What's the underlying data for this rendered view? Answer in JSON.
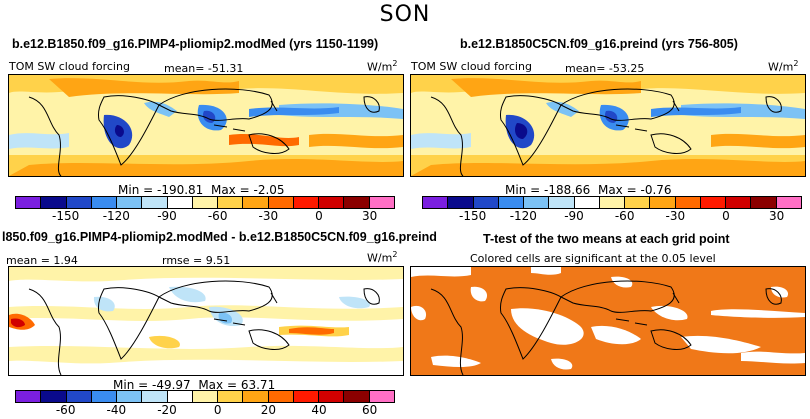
{
  "title": "SON",
  "colors": {
    "scale": [
      "#7b1fe0",
      "#0a0a8c",
      "#2148c8",
      "#3a8cf0",
      "#7cc2f5",
      "#bfe4f8",
      "#ffffff",
      "#fff3a8",
      "#ffd24a",
      "#ffa514",
      "#ff6a00",
      "#ff1a00",
      "#d10000",
      "#8b0000",
      "#ff6fc5"
    ],
    "significant": "#f07818"
  },
  "panels": [
    {
      "id": "model",
      "title": "b.e12.B1850.f09_g16.PIMP4-pliomip2.modMed (yrs 1150-1199)",
      "variable": "TOM SW cloud forcing",
      "mean_label": "mean=",
      "mean": "-51.31",
      "unit": "W/m",
      "unit_exp": "2",
      "min_label": "Min =",
      "min": "-190.81",
      "max_label": "Max =",
      "max": "-2.05",
      "ticks": [
        "-150",
        "-120",
        "-90",
        "-60",
        "-30",
        "0",
        "30"
      ]
    },
    {
      "id": "control",
      "title": "b.e12.B1850C5CN.f09_g16.preind (yrs 756-805)",
      "variable": "TOM SW cloud forcing",
      "mean_label": "mean=",
      "mean": "-53.25",
      "unit": "W/m",
      "unit_exp": "2",
      "min_label": "Min =",
      "min": "-188.66",
      "max_label": "Max =",
      "max": "-0.76",
      "ticks": [
        "-150",
        "-120",
        "-90",
        "-60",
        "-30",
        "0",
        "30"
      ]
    },
    {
      "id": "difference",
      "title": "l850.f09_g16.PIMP4-pliomip2.modMed - b.e12.B1850C5CN.f09_g16.preind",
      "mean_label": "mean =",
      "mean": "1.94",
      "rmse_label": "rmse =",
      "rmse": "9.51",
      "unit": "W/m",
      "unit_exp": "2",
      "min_label": "Min =",
      "min": "-49.97",
      "max_label": "Max =",
      "max": "63.71",
      "ticks": [
        "-60",
        "-40",
        "-20",
        "0",
        "20",
        "40",
        "60"
      ]
    },
    {
      "id": "ttest",
      "title": "T-test of the two means at each grid point",
      "subtitle": "Colored cells are significant at the 0.05 level"
    }
  ],
  "chart_data": [
    {
      "type": "heatmap",
      "title": "b.e12.B1850.f09_g16.PIMP4-pliomip2.modMed (yrs 1150-1199)",
      "variable": "TOM SW cloud forcing",
      "units": "W/m2",
      "mean": -51.31,
      "min": -190.81,
      "max": -2.05,
      "colorbar_levels": [
        -150,
        -120,
        -90,
        -60,
        -30,
        0,
        30
      ]
    },
    {
      "type": "heatmap",
      "title": "b.e12.B1850C5CN.f09_g16.preind (yrs 756-805)",
      "variable": "TOM SW cloud forcing",
      "units": "W/m2",
      "mean": -53.25,
      "min": -188.66,
      "max": -0.76,
      "colorbar_levels": [
        -150,
        -120,
        -90,
        -60,
        -30,
        0,
        30
      ]
    },
    {
      "type": "heatmap",
      "title": "l850.f09_g16.PIMP4-pliomip2.modMed - b.e12.B1850C5CN.f09_g16.preind",
      "units": "W/m2",
      "mean": 1.94,
      "rmse": 9.51,
      "min": -49.97,
      "max": 63.71,
      "colorbar_levels": [
        -60,
        -40,
        -20,
        0,
        20,
        40,
        60
      ]
    },
    {
      "type": "heatmap",
      "title": "T-test of the two means at each grid point",
      "subtitle": "Colored cells are significant at the 0.05 level"
    }
  ]
}
